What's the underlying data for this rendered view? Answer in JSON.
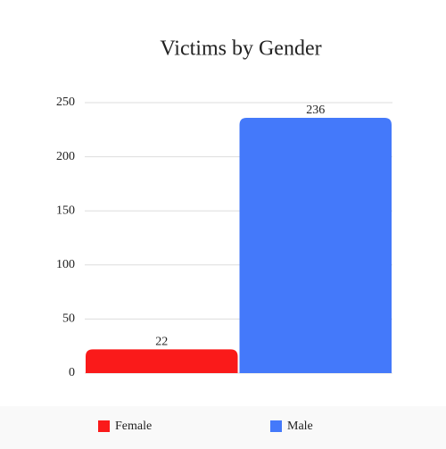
{
  "chart_data": {
    "type": "bar",
    "title": "Victims by Gender",
    "categories": [
      "Female",
      "Male"
    ],
    "values": [
      22,
      236
    ],
    "colors": [
      "#fa1a1a",
      "#4479fa"
    ],
    "ylim": [
      0,
      250
    ],
    "yticks": [
      0,
      50,
      100,
      150,
      200,
      250
    ],
    "grid": true,
    "legend": "bottom"
  }
}
